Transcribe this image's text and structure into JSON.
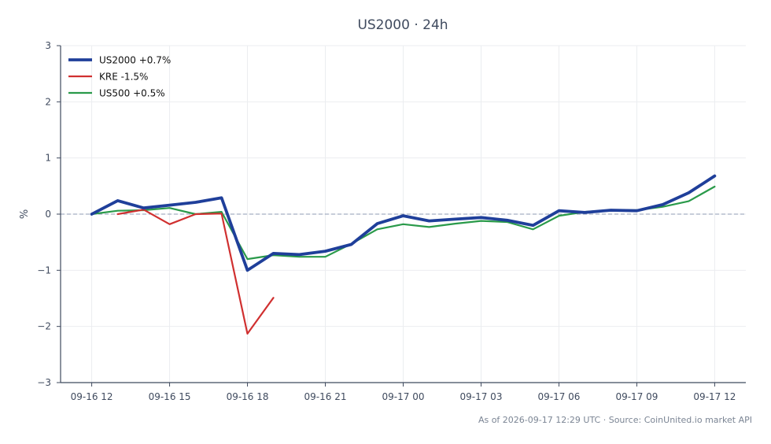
{
  "chart_data": {
    "type": "line",
    "title": "US2000 · 24h",
    "ylabel": "%",
    "xlabel": "",
    "ylim": [
      -3,
      3
    ],
    "yticks": [
      3,
      2,
      1,
      0,
      -1,
      -2,
      -3
    ],
    "ytick_labels": [
      "3",
      "2",
      "1",
      "0",
      "−1",
      "−2",
      "−3"
    ],
    "xlim": [
      -1.2,
      25.2
    ],
    "xticks": [
      0,
      3,
      6,
      9,
      12,
      15,
      18,
      21,
      24
    ],
    "xtick_labels": [
      "09-16 12",
      "09-16 15",
      "09-16 18",
      "09-16 21",
      "09-17 00",
      "09-17 03",
      "09-17 06",
      "09-17 09",
      "09-17 12"
    ],
    "grid": true,
    "legend_position": "top-left",
    "zero_line": true,
    "series": [
      {
        "name": "US2000 +0.7%",
        "color": "#1f3f9a",
        "width": 3.8,
        "x": [
          0,
          1,
          2,
          3,
          4,
          5,
          6,
          7,
          8,
          9,
          10,
          11,
          12,
          13,
          14,
          15,
          16,
          17,
          18,
          19,
          20,
          21,
          22,
          23,
          24
        ],
        "y": [
          0.0,
          0.24,
          0.11,
          0.16,
          0.21,
          0.29,
          -1.0,
          -0.7,
          -0.72,
          -0.66,
          -0.54,
          -0.17,
          -0.03,
          -0.12,
          -0.09,
          -0.06,
          -0.11,
          -0.2,
          0.06,
          0.03,
          0.07,
          0.06,
          0.17,
          0.38,
          0.68
        ]
      },
      {
        "name": "KRE -1.5%",
        "color": "#d03030",
        "width": 2.2,
        "x": [
          1,
          2,
          3,
          4,
          5,
          6,
          7
        ],
        "y": [
          0.0,
          0.08,
          -0.18,
          0.0,
          0.01,
          -2.13,
          -1.49
        ]
      },
      {
        "name": "US500 +0.5%",
        "color": "#2a9a4a",
        "width": 2.2,
        "x": [
          0,
          1,
          2,
          3,
          4,
          5,
          6,
          7,
          8,
          9,
          10,
          11,
          12,
          13,
          14,
          15,
          16,
          17,
          18,
          19,
          20,
          21,
          22,
          23,
          24
        ],
        "y": [
          0.0,
          0.06,
          0.07,
          0.11,
          0.0,
          0.04,
          -0.8,
          -0.73,
          -0.76,
          -0.76,
          -0.53,
          -0.27,
          -0.18,
          -0.23,
          -0.17,
          -0.12,
          -0.14,
          -0.27,
          -0.03,
          0.04,
          0.07,
          0.07,
          0.13,
          0.23,
          0.49
        ]
      }
    ]
  },
  "footer": "As of 2026-09-17 12:29 UTC · Source: CoinUnited.io market API",
  "colors": {
    "axis": "#3f4a5e",
    "grid": "#ebedf0",
    "zero_line": "#8f9bb3"
  }
}
